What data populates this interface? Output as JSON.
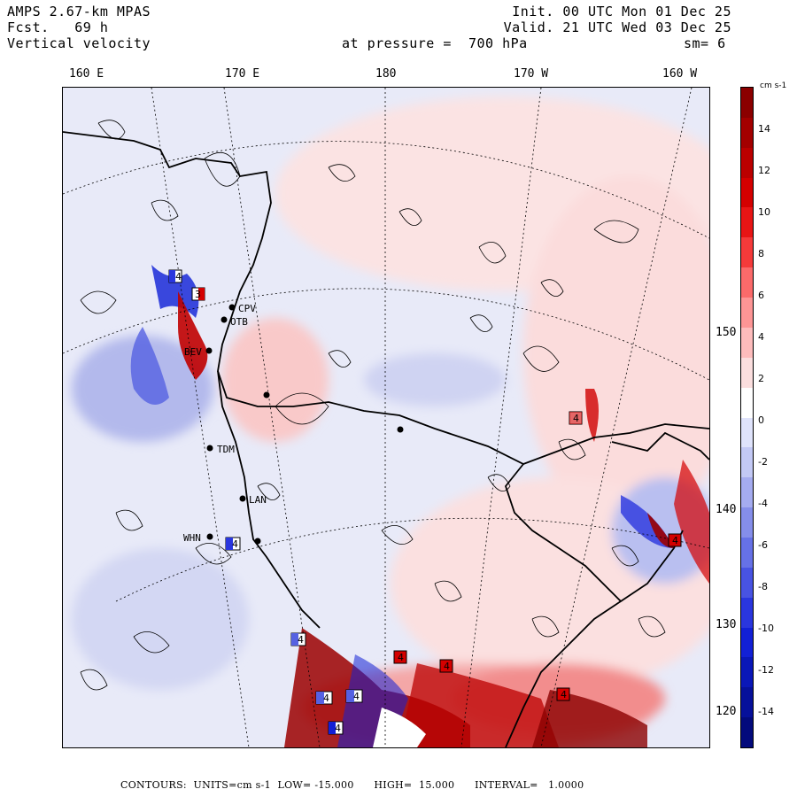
{
  "header": {
    "model": "AMPS 2.67-km MPAS",
    "forecast": "Fcst.   69 h",
    "field": "Vertical velocity",
    "init": "Init. 00 UTC Mon 01 Dec 25",
    "valid": "Valid. 21 UTC Wed 03 Dec 25",
    "level": "at pressure =  700 hPa",
    "smooth": "sm= 6"
  },
  "longitude_labels": [
    "160 E",
    "170 E",
    "180",
    "170 W",
    "160 W"
  ],
  "latitude_labels": [
    "150 W",
    "140 W",
    "130 W",
    "120 W"
  ],
  "stations": [
    {
      "code": "CPV"
    },
    {
      "code": "OTB"
    },
    {
      "code": "BEV"
    },
    {
      "code": "TDM"
    },
    {
      "code": "LAN"
    },
    {
      "code": "WHN"
    }
  ],
  "extrema_markers": [
    {
      "label": "4",
      "sign": "neg"
    },
    {
      "label": "3",
      "sign": "pos"
    },
    {
      "label": "4",
      "sign": "pos"
    },
    {
      "label": "4",
      "sign": "neg"
    },
    {
      "label": "4",
      "sign": "pos"
    },
    {
      "label": "4",
      "sign": "neg"
    },
    {
      "label": "4",
      "sign": "pos"
    },
    {
      "label": "4",
      "sign": "pos"
    },
    {
      "label": "4",
      "sign": "neg"
    },
    {
      "label": "4",
      "sign": "neg"
    },
    {
      "label": "4",
      "sign": "pos"
    },
    {
      "label": "4",
      "sign": "neg"
    }
  ],
  "colorbar": {
    "unit": "cm s-1",
    "ticks": [
      "14",
      "12",
      "10",
      "8",
      "6",
      "4",
      "2",
      "0",
      "-2",
      "-4",
      "-6",
      "-8",
      "-10",
      "-12",
      "-14"
    ],
    "colors": [
      "#8b0000",
      "#a30000",
      "#bb0000",
      "#d40000",
      "#e81515",
      "#f53a3a",
      "#fb6a6a",
      "#fd9595",
      "#fdbcbc",
      "#fbdede",
      "#ffffff",
      "#dfe3fb",
      "#c3c9f5",
      "#a5acf0",
      "#858eea",
      "#6671e6",
      "#4853e2",
      "#2a36de",
      "#1220d6",
      "#0a17b8",
      "#06109a",
      "#030a7c"
    ]
  },
  "footer": "CONTOURS:  UNITS=cm s-1  LOW= -15.000      HIGH=  15.000      INTERVAL=   1.0000"
}
